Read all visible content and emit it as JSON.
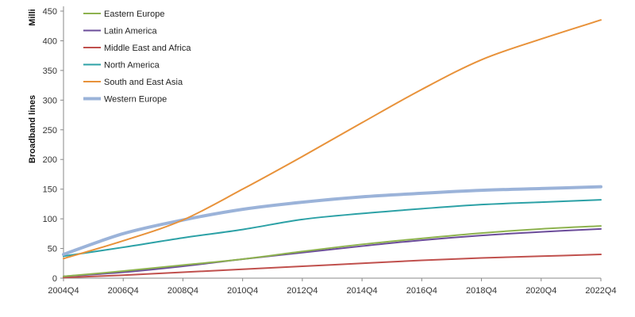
{
  "chart_data": {
    "type": "line",
    "title": "",
    "xlabel": "",
    "ylabel": "Broadband lines",
    "ylabel_secondary": "Milli",
    "ylim": [
      0,
      450
    ],
    "yticks": [
      0,
      50,
      100,
      150,
      200,
      250,
      300,
      350,
      400,
      450
    ],
    "x_ticks": [
      "2004Q4",
      "2006Q4",
      "2008Q4",
      "2010Q4",
      "2012Q4",
      "2014Q4",
      "2016Q4",
      "2018Q4",
      "2020Q4",
      "2022Q4"
    ],
    "x": [
      "2004Q4",
      "2006Q4",
      "2008Q4",
      "2010Q4",
      "2012Q4",
      "2014Q4",
      "2016Q4",
      "2018Q4",
      "2020Q4",
      "2022Q4"
    ],
    "grid": false,
    "legend_position": "top-left",
    "series": [
      {
        "name": "Eastern Europe",
        "color": "#8db24e",
        "width": 2,
        "values": [
          3,
          12,
          22,
          32,
          45,
          57,
          67,
          76,
          83,
          88
        ]
      },
      {
        "name": "Latin America",
        "color": "#6b4c9a",
        "width": 2,
        "values": [
          3,
          10,
          20,
          32,
          43,
          54,
          64,
          72,
          78,
          83
        ]
      },
      {
        "name": "Middle East and Africa",
        "color": "#c0504d",
        "width": 2,
        "values": [
          1,
          5,
          10,
          15,
          20,
          25,
          30,
          34,
          37,
          40
        ]
      },
      {
        "name": "North America",
        "color": "#2ca1a6",
        "width": 2,
        "values": [
          37,
          52,
          68,
          82,
          99,
          109,
          117,
          124,
          128,
          132
        ]
      },
      {
        "name": "South and East Asia",
        "color": "#e8923a",
        "width": 2,
        "values": [
          33,
          63,
          98,
          150,
          205,
          262,
          318,
          368,
          403,
          435
        ]
      },
      {
        "name": "Western Europe",
        "color": "#9bb3d9",
        "width": 4,
        "values": [
          40,
          75,
          98,
          116,
          128,
          137,
          143,
          148,
          151,
          154
        ]
      }
    ]
  }
}
